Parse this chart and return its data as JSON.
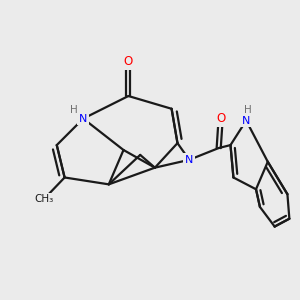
{
  "background_color": "#ebebeb",
  "bond_color": "#1a1a1a",
  "N_color": "#0000ff",
  "O_color": "#ff0000",
  "H_color": "#707070",
  "bond_width": 1.6,
  "figsize": [
    3.0,
    3.0
  ],
  "dpi": 100,
  "xlim": [
    0,
    10
  ],
  "ylim": [
    0,
    10
  ]
}
